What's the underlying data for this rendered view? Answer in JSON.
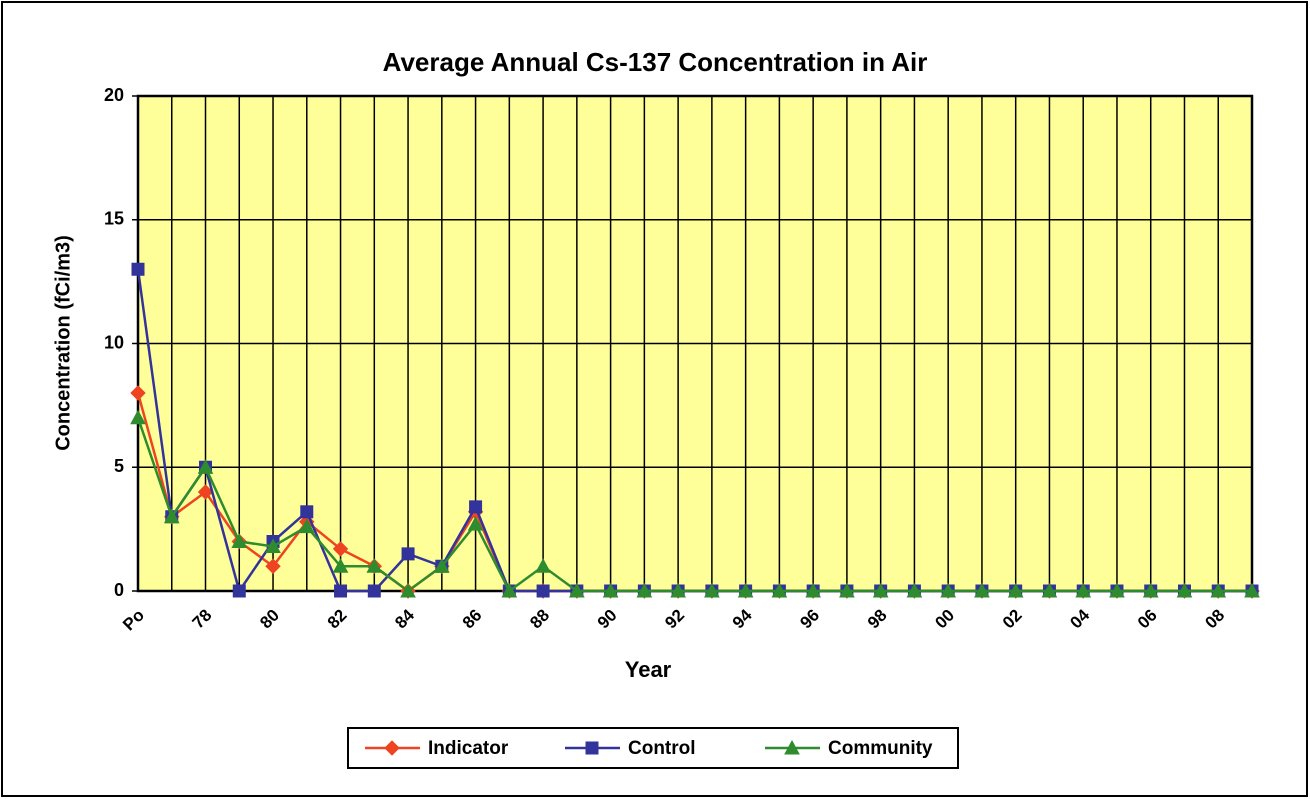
{
  "chart_data": {
    "type": "line",
    "title": "Average Annual Cs-137 Concentration in Air",
    "x_label": "Year",
    "y_label": "Concentration (fCi/m3)",
    "categories": [
      "Po",
      null,
      "78",
      null,
      "80",
      null,
      "82",
      null,
      "84",
      null,
      "86",
      null,
      "88",
      null,
      "90",
      null,
      "92",
      null,
      "94",
      null,
      "96",
      null,
      "98",
      null,
      "00",
      null,
      "02",
      null,
      "04",
      null,
      "06",
      null,
      "08",
      null
    ],
    "series": [
      {
        "name": "Indicator",
        "color": "#ee4422",
        "marker": "diamond",
        "values": [
          8,
          3,
          4,
          2,
          1,
          2.8,
          1.7,
          1,
          0,
          1,
          3.2,
          0,
          0,
          0,
          0,
          0,
          0,
          0,
          0,
          0,
          0,
          0,
          0,
          0,
          0,
          0,
          0,
          0,
          0,
          0,
          0,
          0,
          0,
          0
        ]
      },
      {
        "name": "Control",
        "color": "#33339c",
        "marker": "square",
        "values": [
          13,
          3,
          5,
          0,
          2,
          3.2,
          0,
          0,
          1.5,
          1,
          3.4,
          0,
          0,
          0,
          0,
          0,
          0,
          0,
          0,
          0,
          0,
          0,
          0,
          0,
          0,
          0,
          0,
          0,
          0,
          0,
          0,
          0,
          0,
          0
        ]
      },
      {
        "name": "Community",
        "color": "#2e8b2e",
        "marker": "triangle",
        "values": [
          7,
          3,
          5,
          2,
          1.8,
          2.6,
          1,
          1,
          0,
          1,
          2.7,
          0,
          1,
          0,
          0,
          0,
          0,
          0,
          0,
          0,
          0,
          0,
          0,
          0,
          0,
          0,
          0,
          0,
          0,
          0,
          0,
          0,
          0,
          0
        ]
      }
    ],
    "ylim": [
      0,
      20
    ],
    "yticks": [
      0,
      5,
      10,
      15,
      20
    ],
    "grid": true,
    "legend": "bottom",
    "plot_background": "#ffff99"
  }
}
